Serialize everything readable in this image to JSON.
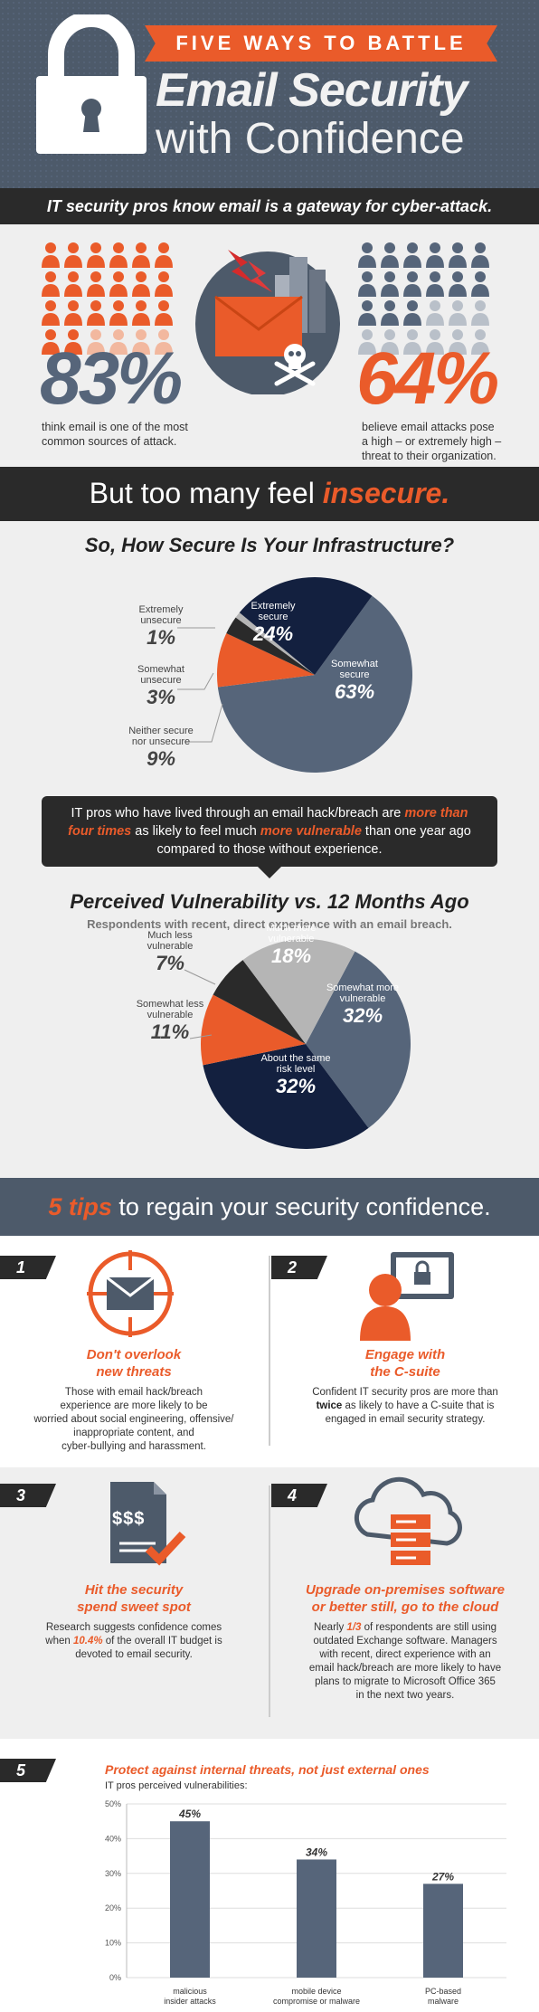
{
  "header": {
    "banner": "FIVE WAYS TO BATTLE",
    "title_line1": "Email Security",
    "title_line2": "with Confidence"
  },
  "subbar": "IT security pros know email is a gateway for cyber-attack.",
  "stats": {
    "left": {
      "value": "83%",
      "text_line1": "think email is one of the most",
      "text_line2": "common sources of attack."
    },
    "right": {
      "value": "64%",
      "text_line1": "believe email attacks pose",
      "text_line2": "a high – or extremely high –",
      "text_line3": "threat to their organization."
    }
  },
  "insecure": {
    "prefix": "But too many feel ",
    "emph": "insecure."
  },
  "pie1": {
    "title": "So, How Secure Is Your Infrastructure?",
    "slices": [
      {
        "label1": "Somewhat",
        "label2": "secure",
        "value": "63%",
        "pct": 63,
        "color": "#56657a"
      },
      {
        "label1": "Neither secure",
        "label2": "nor unsecure",
        "value": "9%",
        "pct": 9,
        "color": "#ea5b2a"
      },
      {
        "label1": "Somewhat",
        "label2": "unsecure",
        "value": "3%",
        "pct": 3,
        "color": "#2a2a2a"
      },
      {
        "label1": "Extremely",
        "label2": "unsecure",
        "value": "1%",
        "pct": 1,
        "color": "#b5b5b5"
      },
      {
        "label1": "Extremely",
        "label2": "secure",
        "value": "24%",
        "pct": 24,
        "color": "#13203f"
      }
    ]
  },
  "callout": {
    "t1": "IT pros who have lived through an email hack/breach are ",
    "o1": "more than",
    "o2": "four times",
    "t2": " as likely to feel much ",
    "o3": "more vulnerable",
    "t3": " than one year ago",
    "t4": "compared to those without experience."
  },
  "pie2": {
    "title": "Perceived Vulnerability vs. 12 Months Ago",
    "subtitle": "Respondents with recent, direct experience with an email breach.",
    "slices": [
      {
        "label1": "Somewhat more",
        "label2": "vulnerable",
        "value": "32%",
        "pct": 32,
        "color": "#56657a"
      },
      {
        "label1": "About the same",
        "label2": "risk level",
        "value": "32%",
        "pct": 32,
        "color": "#13203f"
      },
      {
        "label1": "Somewhat less",
        "label2": "vulnerable",
        "value": "11%",
        "pct": 11,
        "color": "#ea5b2a"
      },
      {
        "label1": "Much less",
        "label2": "vulnerable",
        "value": "7%",
        "pct": 7,
        "color": "#2a2a2a"
      },
      {
        "label1": "Much more",
        "label2": "vulnerable",
        "value": "18%",
        "pct": 18,
        "color": "#b5b5b5"
      }
    ]
  },
  "tips_bar": {
    "emph": "5 tips",
    "rest": " to regain your security confidence."
  },
  "tips": [
    {
      "num": "1",
      "title1": "Don't overlook",
      "title2": "new threats",
      "l1": "Those with email hack/breach",
      "l2": "experience are more likely to be",
      "l3": "worried about social engineering, offensive/",
      "l4": "inappropriate content, and",
      "l5": "cyber-bullying and harassment."
    },
    {
      "num": "2",
      "title1": "Engage with",
      "title2": "the C-suite",
      "l1": "Confident IT security pros are more than",
      "b2": "twice",
      "l2": " as likely to have a C-suite that is",
      "l3": "engaged in email security strategy."
    },
    {
      "num": "3",
      "title1": "Hit the security",
      "title2": "spend sweet spot",
      "dollars": "$$$",
      "l1": "Research suggests confidence comes",
      "l2a": "when ",
      "o2": "10.4%",
      "l2b": " of the overall IT budget is",
      "l3": "devoted to email security."
    },
    {
      "num": "4",
      "title1": "Upgrade on-premises software",
      "title2": "or better still, go to the cloud",
      "l1a": "Nearly ",
      "o1": "1/3",
      "l1b": " of respondents are still using",
      "l2": "outdated Exchange software. Managers",
      "l3": "with recent, direct experience with an",
      "l4": "email hack/breach are more likely to have",
      "l5": "plans to migrate to Microsoft Office 365",
      "l6": "in the next two years."
    },
    {
      "num": "5",
      "title": "Protect against internal threats, not just external ones",
      "subtitle": "IT pros perceived vulnerabilities:"
    }
  ],
  "chart_data": {
    "type": "bar",
    "title": "IT pros perceived vulnerabilities:",
    "categories": [
      "malicious insider attacks",
      "mobile device compromise or malware",
      "PC-based malware"
    ],
    "category_lines": [
      [
        "malicious",
        "insider attacks"
      ],
      [
        "mobile device",
        "compromise or malware"
      ],
      [
        "PC-based",
        "malware"
      ]
    ],
    "values": [
      45,
      34,
      27
    ],
    "value_labels": [
      "45%",
      "34%",
      "27%"
    ],
    "yticks": [
      "0%",
      "10%",
      "20%",
      "30%",
      "40%",
      "50%"
    ],
    "ylim": [
      0,
      50
    ],
    "bar_color": "#56657a"
  }
}
